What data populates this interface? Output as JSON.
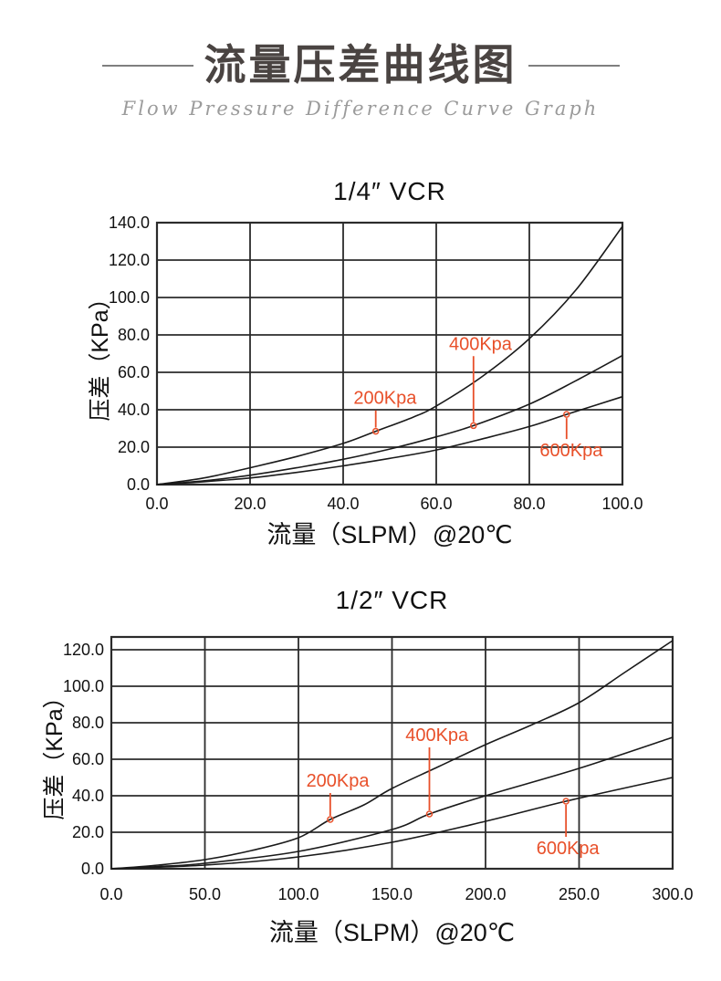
{
  "header": {
    "title": "流量压差曲线图",
    "subtitle": "Flow Pressure Difference Curve Graph"
  },
  "colors": {
    "annotation": "#e8502a",
    "curve": "#1a1a1a",
    "grid": "#2b2b2b",
    "title_text": "#4a4442",
    "subtitle_text": "#9b9b9b"
  },
  "chart_data": [
    {
      "type": "line",
      "title": "1/4″ VCR",
      "xlabel": "流量（SLPM）@20℃",
      "ylabel": "压差（KPa）",
      "xlim": [
        0,
        100
      ],
      "ylim": [
        0,
        140
      ],
      "grid": "on",
      "xticks": [
        "0.0",
        "20.0",
        "40.0",
        "60.0",
        "80.0",
        "100.0"
      ],
      "yticks": [
        "0.0",
        "20.0",
        "40.0",
        "60.0",
        "80.0",
        "100.0",
        "120.0",
        "140.0"
      ],
      "series": [
        {
          "name": "200Kpa",
          "points": [
            [
              0,
              0
            ],
            [
              10,
              3.5
            ],
            [
              20,
              9
            ],
            [
              30,
              15
            ],
            [
              40,
              22
            ],
            [
              47,
              28.5
            ],
            [
              55,
              36
            ],
            [
              60,
              42
            ],
            [
              70,
              58
            ],
            [
              80,
              78
            ],
            [
              90,
              104
            ],
            [
              100,
              138
            ]
          ]
        },
        {
          "name": "400Kpa",
          "points": [
            [
              0,
              0
            ],
            [
              10,
              2
            ],
            [
              20,
              5
            ],
            [
              30,
              9
            ],
            [
              40,
              13.5
            ],
            [
              50,
              19
            ],
            [
              60,
              25.5
            ],
            [
              68,
              31.5
            ],
            [
              80,
              43
            ],
            [
              90,
              55.5
            ],
            [
              100,
              69
            ]
          ]
        },
        {
          "name": "600Kpa",
          "points": [
            [
              0,
              0
            ],
            [
              10,
              1.5
            ],
            [
              20,
              3.5
            ],
            [
              30,
              6.5
            ],
            [
              40,
              10
            ],
            [
              50,
              14
            ],
            [
              60,
              18.5
            ],
            [
              70,
              24.5
            ],
            [
              80,
              31
            ],
            [
              88,
              37.5
            ],
            [
              100,
              47
            ]
          ]
        }
      ],
      "annotations": [
        {
          "label": "200Kpa",
          "point": [
            47,
            28.5
          ],
          "label_x": 49,
          "label_y": 46,
          "side": "above"
        },
        {
          "label": "400Kpa",
          "point": [
            68,
            31.5
          ],
          "label_x": 69.5,
          "label_y": 75,
          "side": "above"
        },
        {
          "label": "600Kpa",
          "point": [
            88,
            37.5
          ],
          "label_x": 89,
          "label_y": 18,
          "side": "below"
        }
      ]
    },
    {
      "type": "line",
      "title": "1/2″ VCR",
      "xlabel": "流量（SLPM）@20℃",
      "ylabel": "压差（KPa）",
      "xlim": [
        0,
        300
      ],
      "ylim": [
        0,
        120
      ],
      "grid": "on",
      "xticks": [
        "0.0",
        "50.0",
        "100.0",
        "150.0",
        "200.0",
        "250.0",
        "300.0"
      ],
      "yticks": [
        "0.0",
        "20.0",
        "40.0",
        "60.0",
        "80.0",
        "100.0",
        "120.0"
      ],
      "series": [
        {
          "name": "200Kpa",
          "points": [
            [
              0,
              0
            ],
            [
              25,
              2
            ],
            [
              50,
              5
            ],
            [
              75,
              10
            ],
            [
              100,
              17
            ],
            [
              117,
              27
            ],
            [
              135,
              35
            ],
            [
              150,
              44
            ],
            [
              175,
              56
            ],
            [
              200,
              68
            ],
            [
              225,
              79
            ],
            [
              250,
              91
            ],
            [
              275,
              108
            ],
            [
              300,
              125
            ]
          ]
        },
        {
          "name": "400Kpa",
          "points": [
            [
              0,
              0
            ],
            [
              25,
              1.2
            ],
            [
              50,
              3
            ],
            [
              100,
              9.5
            ],
            [
              150,
              21.5
            ],
            [
              170,
              30
            ],
            [
              200,
              40
            ],
            [
              250,
              55
            ],
            [
              300,
              72
            ]
          ]
        },
        {
          "name": "600Kpa",
          "points": [
            [
              0,
              0
            ],
            [
              50,
              2
            ],
            [
              100,
              6.5
            ],
            [
              150,
              14.5
            ],
            [
              200,
              26
            ],
            [
              243,
              37
            ],
            [
              300,
              50
            ]
          ]
        }
      ],
      "annotations": [
        {
          "label": "200Kpa",
          "point": [
            117,
            27
          ],
          "label_x": 121,
          "label_y": 48,
          "side": "above"
        },
        {
          "label": "400Kpa",
          "point": [
            170,
            30
          ],
          "label_x": 174,
          "label_y": 73,
          "side": "above"
        },
        {
          "label": "600Kpa",
          "point": [
            243,
            37
          ],
          "label_x": 244,
          "label_y": 11,
          "side": "below"
        }
      ]
    }
  ]
}
